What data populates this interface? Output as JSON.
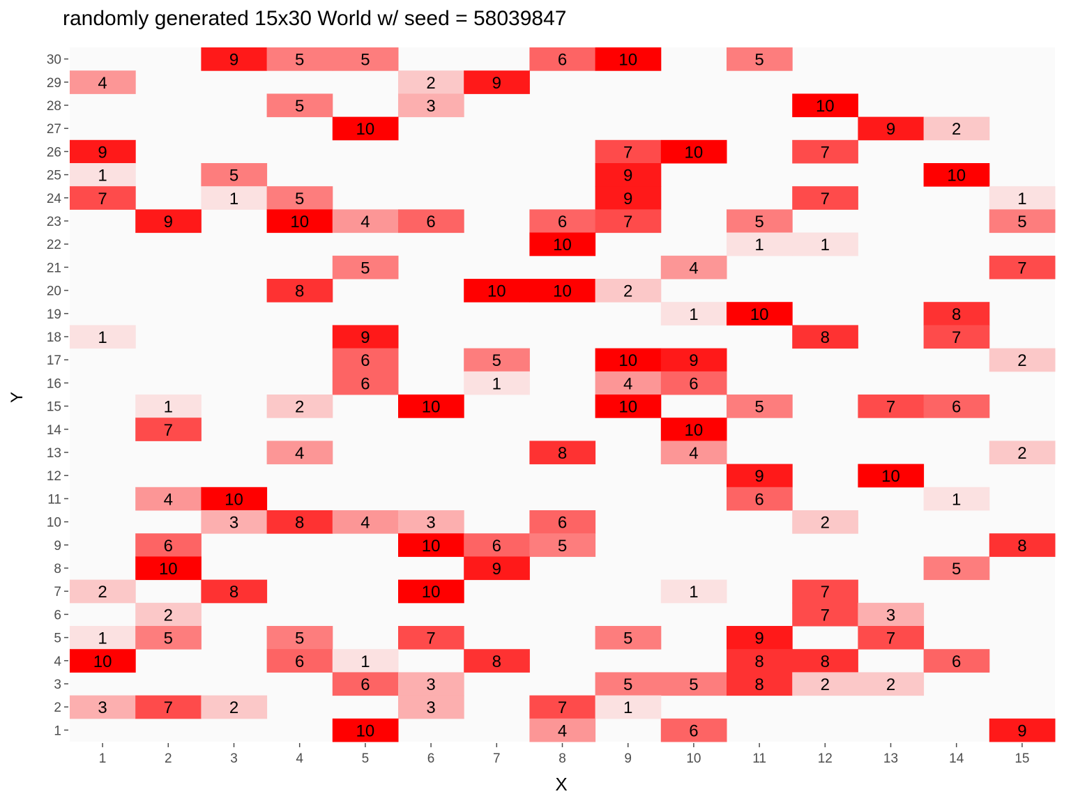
{
  "chart_data": {
    "type": "heatmap",
    "title": "randomly generated 15x30 World w/ seed = 58039847",
    "xlabel": "X",
    "ylabel": "Y",
    "x_categories": [
      1,
      2,
      3,
      4,
      5,
      6,
      7,
      8,
      9,
      10,
      11,
      12,
      13,
      14,
      15
    ],
    "y_categories": [
      1,
      2,
      3,
      4,
      5,
      6,
      7,
      8,
      9,
      10,
      11,
      12,
      13,
      14,
      15,
      16,
      17,
      18,
      19,
      20,
      21,
      22,
      23,
      24,
      25,
      26,
      27,
      28,
      29,
      30
    ],
    "value_range": [
      0,
      10
    ],
    "colors": {
      "low": "#fafafa",
      "high": "#ff0000",
      "tick": "#4d4d4d",
      "text": "#000000"
    },
    "cells": [
      {
        "x": 3,
        "y": 30,
        "v": 9
      },
      {
        "x": 4,
        "y": 30,
        "v": 5
      },
      {
        "x": 5,
        "y": 30,
        "v": 5
      },
      {
        "x": 8,
        "y": 30,
        "v": 6
      },
      {
        "x": 9,
        "y": 30,
        "v": 10
      },
      {
        "x": 11,
        "y": 30,
        "v": 5
      },
      {
        "x": 1,
        "y": 29,
        "v": 4
      },
      {
        "x": 6,
        "y": 29,
        "v": 2
      },
      {
        "x": 7,
        "y": 29,
        "v": 9
      },
      {
        "x": 4,
        "y": 28,
        "v": 5
      },
      {
        "x": 6,
        "y": 28,
        "v": 3
      },
      {
        "x": 12,
        "y": 28,
        "v": 10
      },
      {
        "x": 5,
        "y": 27,
        "v": 10
      },
      {
        "x": 13,
        "y": 27,
        "v": 9
      },
      {
        "x": 14,
        "y": 27,
        "v": 2
      },
      {
        "x": 1,
        "y": 26,
        "v": 9
      },
      {
        "x": 9,
        "y": 26,
        "v": 7
      },
      {
        "x": 10,
        "y": 26,
        "v": 10
      },
      {
        "x": 12,
        "y": 26,
        "v": 7
      },
      {
        "x": 1,
        "y": 25,
        "v": 1
      },
      {
        "x": 3,
        "y": 25,
        "v": 5
      },
      {
        "x": 9,
        "y": 25,
        "v": 9
      },
      {
        "x": 14,
        "y": 25,
        "v": 10
      },
      {
        "x": 1,
        "y": 24,
        "v": 7
      },
      {
        "x": 3,
        "y": 24,
        "v": 1
      },
      {
        "x": 4,
        "y": 24,
        "v": 5
      },
      {
        "x": 9,
        "y": 24,
        "v": 9
      },
      {
        "x": 12,
        "y": 24,
        "v": 7
      },
      {
        "x": 15,
        "y": 24,
        "v": 1
      },
      {
        "x": 2,
        "y": 23,
        "v": 9
      },
      {
        "x": 4,
        "y": 23,
        "v": 10
      },
      {
        "x": 5,
        "y": 23,
        "v": 4
      },
      {
        "x": 6,
        "y": 23,
        "v": 6
      },
      {
        "x": 8,
        "y": 23,
        "v": 6
      },
      {
        "x": 9,
        "y": 23,
        "v": 7
      },
      {
        "x": 11,
        "y": 23,
        "v": 5
      },
      {
        "x": 15,
        "y": 23,
        "v": 5
      },
      {
        "x": 8,
        "y": 22,
        "v": 10
      },
      {
        "x": 11,
        "y": 22,
        "v": 1
      },
      {
        "x": 12,
        "y": 22,
        "v": 1
      },
      {
        "x": 5,
        "y": 21,
        "v": 5
      },
      {
        "x": 10,
        "y": 21,
        "v": 4
      },
      {
        "x": 15,
        "y": 21,
        "v": 7
      },
      {
        "x": 4,
        "y": 20,
        "v": 8
      },
      {
        "x": 7,
        "y": 20,
        "v": 10
      },
      {
        "x": 8,
        "y": 20,
        "v": 10
      },
      {
        "x": 9,
        "y": 20,
        "v": 2
      },
      {
        "x": 10,
        "y": 19,
        "v": 1
      },
      {
        "x": 11,
        "y": 19,
        "v": 10
      },
      {
        "x": 14,
        "y": 19,
        "v": 8
      },
      {
        "x": 1,
        "y": 18,
        "v": 1
      },
      {
        "x": 5,
        "y": 18,
        "v": 9
      },
      {
        "x": 12,
        "y": 18,
        "v": 8
      },
      {
        "x": 14,
        "y": 18,
        "v": 7
      },
      {
        "x": 5,
        "y": 17,
        "v": 6
      },
      {
        "x": 7,
        "y": 17,
        "v": 5
      },
      {
        "x": 9,
        "y": 17,
        "v": 10
      },
      {
        "x": 10,
        "y": 17,
        "v": 9
      },
      {
        "x": 15,
        "y": 17,
        "v": 2
      },
      {
        "x": 5,
        "y": 16,
        "v": 6
      },
      {
        "x": 7,
        "y": 16,
        "v": 1
      },
      {
        "x": 9,
        "y": 16,
        "v": 4
      },
      {
        "x": 10,
        "y": 16,
        "v": 6
      },
      {
        "x": 2,
        "y": 15,
        "v": 1
      },
      {
        "x": 4,
        "y": 15,
        "v": 2
      },
      {
        "x": 6,
        "y": 15,
        "v": 10
      },
      {
        "x": 9,
        "y": 15,
        "v": 10
      },
      {
        "x": 11,
        "y": 15,
        "v": 5
      },
      {
        "x": 13,
        "y": 15,
        "v": 7
      },
      {
        "x": 14,
        "y": 15,
        "v": 6
      },
      {
        "x": 2,
        "y": 14,
        "v": 7
      },
      {
        "x": 10,
        "y": 14,
        "v": 10
      },
      {
        "x": 4,
        "y": 13,
        "v": 4
      },
      {
        "x": 8,
        "y": 13,
        "v": 8
      },
      {
        "x": 10,
        "y": 13,
        "v": 4
      },
      {
        "x": 15,
        "y": 13,
        "v": 2
      },
      {
        "x": 11,
        "y": 12,
        "v": 9
      },
      {
        "x": 13,
        "y": 12,
        "v": 10
      },
      {
        "x": 2,
        "y": 11,
        "v": 4
      },
      {
        "x": 3,
        "y": 11,
        "v": 10
      },
      {
        "x": 11,
        "y": 11,
        "v": 6
      },
      {
        "x": 14,
        "y": 11,
        "v": 1
      },
      {
        "x": 3,
        "y": 10,
        "v": 3
      },
      {
        "x": 4,
        "y": 10,
        "v": 8
      },
      {
        "x": 5,
        "y": 10,
        "v": 4
      },
      {
        "x": 6,
        "y": 10,
        "v": 3
      },
      {
        "x": 8,
        "y": 10,
        "v": 6
      },
      {
        "x": 12,
        "y": 10,
        "v": 2
      },
      {
        "x": 2,
        "y": 9,
        "v": 6
      },
      {
        "x": 6,
        "y": 9,
        "v": 10
      },
      {
        "x": 7,
        "y": 9,
        "v": 6
      },
      {
        "x": 8,
        "y": 9,
        "v": 5
      },
      {
        "x": 15,
        "y": 9,
        "v": 8
      },
      {
        "x": 2,
        "y": 8,
        "v": 10
      },
      {
        "x": 7,
        "y": 8,
        "v": 9
      },
      {
        "x": 14,
        "y": 8,
        "v": 5
      },
      {
        "x": 1,
        "y": 7,
        "v": 2
      },
      {
        "x": 3,
        "y": 7,
        "v": 8
      },
      {
        "x": 6,
        "y": 7,
        "v": 10
      },
      {
        "x": 10,
        "y": 7,
        "v": 1
      },
      {
        "x": 12,
        "y": 7,
        "v": 7
      },
      {
        "x": 2,
        "y": 6,
        "v": 2
      },
      {
        "x": 12,
        "y": 6,
        "v": 7
      },
      {
        "x": 13,
        "y": 6,
        "v": 3
      },
      {
        "x": 1,
        "y": 5,
        "v": 1
      },
      {
        "x": 2,
        "y": 5,
        "v": 5
      },
      {
        "x": 4,
        "y": 5,
        "v": 5
      },
      {
        "x": 6,
        "y": 5,
        "v": 7
      },
      {
        "x": 9,
        "y": 5,
        "v": 5
      },
      {
        "x": 11,
        "y": 5,
        "v": 9
      },
      {
        "x": 13,
        "y": 5,
        "v": 7
      },
      {
        "x": 1,
        "y": 4,
        "v": 10
      },
      {
        "x": 4,
        "y": 4,
        "v": 6
      },
      {
        "x": 5,
        "y": 4,
        "v": 1
      },
      {
        "x": 7,
        "y": 4,
        "v": 8
      },
      {
        "x": 11,
        "y": 4,
        "v": 8
      },
      {
        "x": 12,
        "y": 4,
        "v": 8
      },
      {
        "x": 14,
        "y": 4,
        "v": 6
      },
      {
        "x": 5,
        "y": 3,
        "v": 6
      },
      {
        "x": 6,
        "y": 3,
        "v": 3
      },
      {
        "x": 9,
        "y": 3,
        "v": 5
      },
      {
        "x": 10,
        "y": 3,
        "v": 5
      },
      {
        "x": 11,
        "y": 3,
        "v": 8
      },
      {
        "x": 12,
        "y": 3,
        "v": 2
      },
      {
        "x": 13,
        "y": 3,
        "v": 2
      },
      {
        "x": 1,
        "y": 2,
        "v": 3
      },
      {
        "x": 2,
        "y": 2,
        "v": 7
      },
      {
        "x": 3,
        "y": 2,
        "v": 2
      },
      {
        "x": 6,
        "y": 2,
        "v": 3
      },
      {
        "x": 8,
        "y": 2,
        "v": 7
      },
      {
        "x": 9,
        "y": 2,
        "v": 1
      },
      {
        "x": 5,
        "y": 1,
        "v": 10
      },
      {
        "x": 8,
        "y": 1,
        "v": 4
      },
      {
        "x": 10,
        "y": 1,
        "v": 6
      },
      {
        "x": 15,
        "y": 1,
        "v": 9
      }
    ]
  }
}
